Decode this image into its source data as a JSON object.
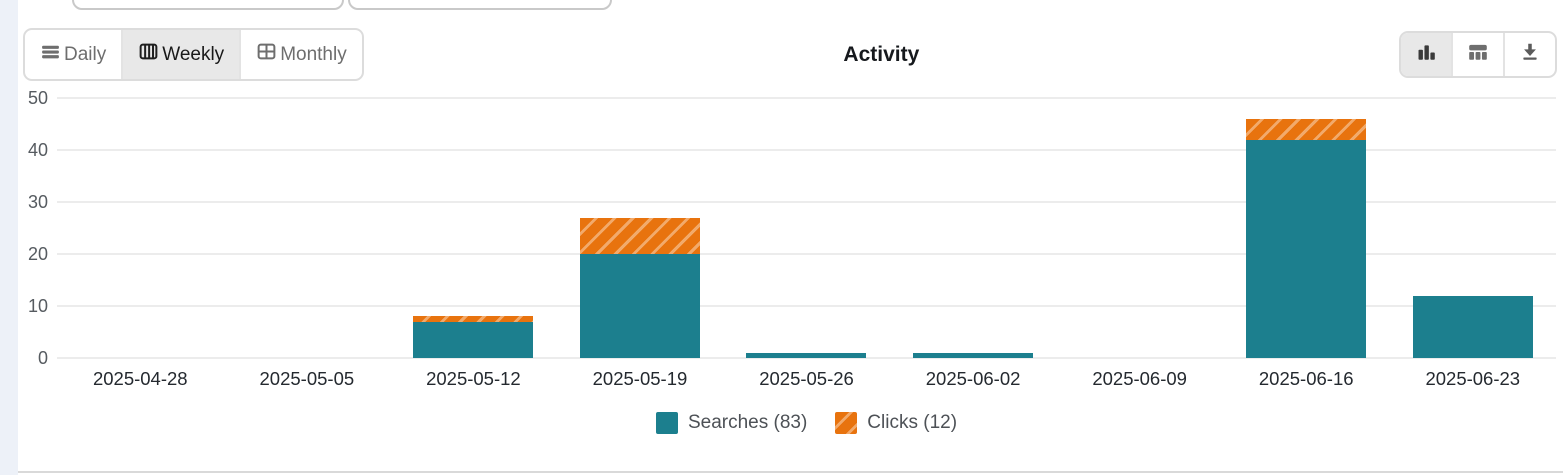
{
  "toolbar": {
    "title": "Activity",
    "view_modes": [
      {
        "label": "Daily",
        "icon": "rows-icon",
        "active": false
      },
      {
        "label": "Weekly",
        "icon": "columns-icon",
        "active": true
      },
      {
        "label": "Monthly",
        "icon": "grid-icon",
        "active": false
      }
    ],
    "display_modes": [
      {
        "icon": "bar-chart-icon",
        "active": true
      },
      {
        "icon": "table-icon",
        "active": false
      },
      {
        "icon": "download-icon",
        "active": false
      }
    ]
  },
  "colors": {
    "searches": "#1c7f8e",
    "clicks": "#e8730e",
    "clicks_hatch": "#f2aa6b",
    "gridline": "#ececec",
    "selected_segment_bg": "#e8e8e8",
    "left_strip": "#edf1f8"
  },
  "chart_data": {
    "type": "bar",
    "stacked": true,
    "title": "Activity",
    "categories": [
      "2025-04-28",
      "2025-05-05",
      "2025-05-12",
      "2025-05-19",
      "2025-05-26",
      "2025-06-02",
      "2025-06-09",
      "2025-06-16",
      "2025-06-23"
    ],
    "series": [
      {
        "key": "searches",
        "name": "Searches (83)",
        "total": 83,
        "color": "#1c7f8e",
        "hatch": false,
        "values": [
          0,
          0,
          7,
          20,
          1,
          1,
          0,
          42,
          12
        ]
      },
      {
        "key": "clicks",
        "name": "Clicks (12)",
        "total": 12,
        "color": "#e8730e",
        "hatch": true,
        "hatch_color": "#f2aa6b",
        "values": [
          0,
          0,
          1,
          7,
          0,
          0,
          0,
          4,
          0
        ]
      }
    ],
    "y_ticks": [
      0,
      10,
      20,
      30,
      40,
      50
    ],
    "ylim": [
      0,
      50
    ],
    "xlabel": "",
    "ylabel": "",
    "grid": true,
    "legend_position": "bottom"
  }
}
